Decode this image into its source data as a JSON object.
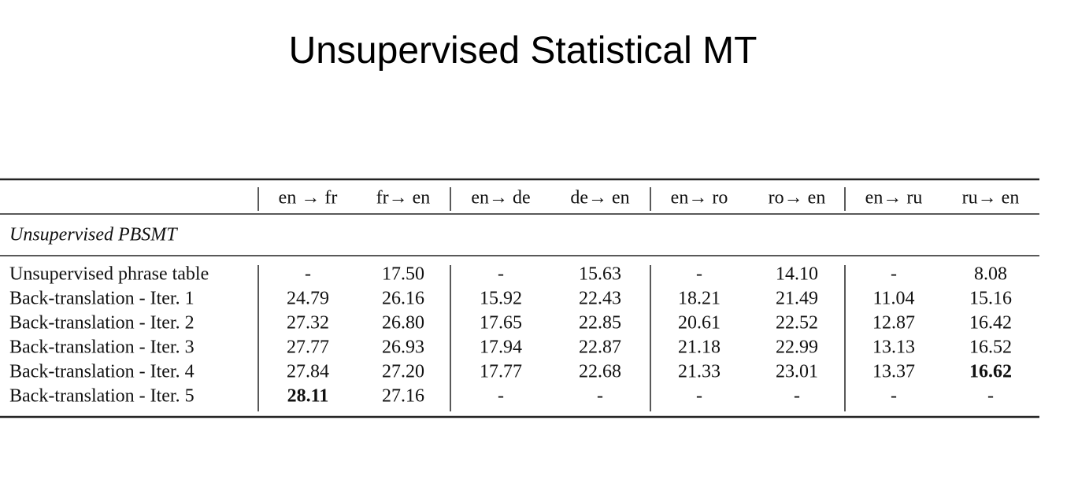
{
  "title": "Unsupervised Statistical MT",
  "table": {
    "header": [
      "en → fr",
      "fr→ en",
      "en→ de",
      "de→ en",
      "en→ ro",
      "ro→ en",
      "en→ ru",
      "ru→ en"
    ],
    "section": "Unsupervised PBSMT",
    "rows": [
      {
        "label": "Unsupervised phrase table",
        "cells": [
          {
            "text": "-"
          },
          {
            "text": "17.50"
          },
          {
            "text": "-"
          },
          {
            "text": "15.63"
          },
          {
            "text": "-"
          },
          {
            "text": "14.10"
          },
          {
            "text": "-"
          },
          {
            "text": "8.08"
          }
        ]
      },
      {
        "label": "Back-translation - Iter. 1",
        "cells": [
          {
            "text": "24.79"
          },
          {
            "text": "26.16"
          },
          {
            "text": "15.92"
          },
          {
            "text": "22.43"
          },
          {
            "text": "18.21"
          },
          {
            "text": "21.49"
          },
          {
            "text": "11.04"
          },
          {
            "text": "15.16"
          }
        ]
      },
      {
        "label": "Back-translation - Iter. 2",
        "cells": [
          {
            "text": "27.32"
          },
          {
            "text": "26.80"
          },
          {
            "text": "17.65"
          },
          {
            "text": "22.85"
          },
          {
            "text": "20.61"
          },
          {
            "text": "22.52"
          },
          {
            "text": "12.87"
          },
          {
            "text": "16.42"
          }
        ]
      },
      {
        "label": "Back-translation - Iter. 3",
        "cells": [
          {
            "text": "27.77"
          },
          {
            "text": "26.93"
          },
          {
            "text": "17.94"
          },
          {
            "text": "22.87"
          },
          {
            "text": "21.18"
          },
          {
            "text": "22.99"
          },
          {
            "text": "13.13"
          },
          {
            "text": "16.52"
          }
        ]
      },
      {
        "label": "Back-translation - Iter. 4",
        "cells": [
          {
            "text": "27.84"
          },
          {
            "text": "27.20"
          },
          {
            "text": "17.77"
          },
          {
            "text": "22.68"
          },
          {
            "text": "21.33"
          },
          {
            "text": "23.01"
          },
          {
            "text": "13.37"
          },
          {
            "text": "16.62",
            "bold": true
          }
        ]
      },
      {
        "label": "Back-translation - Iter. 5",
        "cells": [
          {
            "text": "28.11",
            "bold": true
          },
          {
            "text": "27.16"
          },
          {
            "text": "-"
          },
          {
            "text": "-"
          },
          {
            "text": "-"
          },
          {
            "text": "-"
          },
          {
            "text": "-"
          },
          {
            "text": "-"
          }
        ]
      }
    ]
  }
}
